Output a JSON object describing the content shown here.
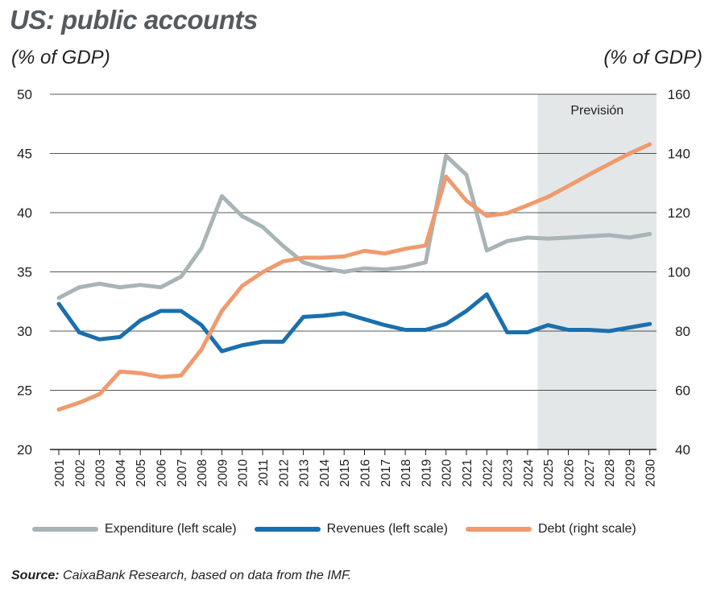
{
  "header": {
    "title": "US: public accounts",
    "unit_left": "(% of GDP)",
    "unit_right": "(% of GDP)"
  },
  "footer": {
    "source_label": "Source:",
    "source_text": "CaixaBank Research, based on data from the IMF."
  },
  "colors": {
    "expenditure": "#a8b4b6",
    "revenues": "#1a6fae",
    "debt": "#f09a6d",
    "forecast_band": "#e3e7e8",
    "grid": "#1f1f1f"
  },
  "chart_data": {
    "type": "line",
    "title": "US: public accounts",
    "xlabel": "",
    "ylabel_left": "(% of GDP)",
    "ylabel_right": "(% of GDP)",
    "ylim_left": [
      20,
      50
    ],
    "yticks_left": [
      "20",
      "25",
      "30",
      "35",
      "40",
      "45",
      "50"
    ],
    "ylim_right": [
      40,
      160
    ],
    "yticks_right": [
      "40",
      "60",
      "80",
      "100",
      "120",
      "140",
      "160"
    ],
    "grid": true,
    "forecast_band": {
      "label": "Previsión",
      "from": "2025",
      "to": "2030"
    },
    "x": [
      "2001",
      "2002",
      "2003",
      "2004",
      "2005",
      "2006",
      "2007",
      "2008",
      "2009",
      "2010",
      "2011",
      "2012",
      "2013",
      "2014",
      "2015",
      "2016",
      "2017",
      "2018",
      "2019",
      "2020",
      "2021",
      "2022",
      "2023",
      "2024",
      "2025",
      "2026",
      "2027",
      "2028",
      "2029",
      "2030"
    ],
    "series": [
      {
        "name": "Expenditure (left scale)",
        "axis": "left",
        "values": [
          32.8,
          33.7,
          34.0,
          33.7,
          33.9,
          33.7,
          34.6,
          37.0,
          41.4,
          39.7,
          38.8,
          37.2,
          35.8,
          35.3,
          35.0,
          35.3,
          35.2,
          35.4,
          35.8,
          44.8,
          43.2,
          36.8,
          37.6,
          37.9,
          37.8,
          37.9,
          38.0,
          38.1,
          37.9,
          38.2
        ]
      },
      {
        "name": "Revenues (left scale)",
        "axis": "left",
        "values": [
          32.3,
          29.9,
          29.3,
          29.5,
          30.9,
          31.7,
          31.7,
          30.5,
          28.3,
          28.8,
          29.1,
          29.1,
          31.2,
          31.3,
          31.5,
          31.0,
          30.5,
          30.1,
          30.1,
          30.6,
          31.7,
          33.1,
          29.9,
          29.9,
          30.5,
          30.1,
          30.1,
          30.0,
          30.3,
          30.6
        ]
      },
      {
        "name": "Debt (right scale)",
        "axis": "right",
        "values": [
          53.5,
          55.8,
          58.7,
          66.3,
          65.8,
          64.5,
          65.0,
          73.8,
          86.8,
          95.3,
          99.9,
          103.5,
          104.8,
          104.8,
          105.2,
          107.1,
          106.2,
          107.8,
          108.9,
          132.2,
          124.0,
          118.9,
          119.8,
          122.5,
          125.3,
          129.0,
          132.8,
          136.4,
          140.0,
          143.1
        ]
      }
    ]
  }
}
